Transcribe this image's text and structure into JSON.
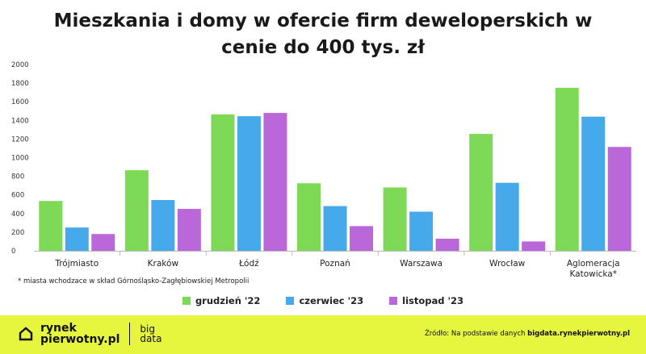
{
  "chart_data": {
    "type": "bar",
    "title_lines": [
      "Mieszkania i domy w ofercie firm deweloperskich w",
      "cenie do 400 tys. zł"
    ],
    "categories": [
      [
        "Trójmiasto"
      ],
      [
        "Kraków"
      ],
      [
        "Łódź"
      ],
      [
        "Poznań"
      ],
      [
        "Warszawa"
      ],
      [
        "Wrocław"
      ],
      [
        "Aglomeracja",
        "Katowicka*"
      ]
    ],
    "series": [
      {
        "name": "grudzień '22",
        "color": "#7ed957",
        "values": [
          535,
          865,
          1465,
          725,
          680,
          1255,
          1750
        ]
      },
      {
        "name": "czerwiec '23",
        "color": "#45a9ea",
        "values": [
          250,
          545,
          1445,
          480,
          420,
          730,
          1440
        ]
      },
      {
        "name": "listopad '23",
        "color": "#b967d9",
        "values": [
          180,
          450,
          1480,
          265,
          130,
          100,
          1115
        ]
      }
    ],
    "ylim": [
      0,
      2000
    ],
    "yticks": [
      "0",
      "200",
      "400",
      "600",
      "800",
      "1000",
      "1200",
      "1400",
      "1600",
      "1800",
      "2000"
    ],
    "grid": false,
    "legend_position": "bottom"
  },
  "footnote": "* miasta wchodzace w skład Górnośląsko-Zagłębiowskiej Metropolii",
  "footer": {
    "brand_line1": "rynek",
    "brand_line2": "pierwotny.pl",
    "brand_sub1": "big",
    "brand_sub2": "data",
    "source_prefix": "Źródło: Na podstawie danych ",
    "source_link": "bigdata.rynekpierwotny.pl",
    "background_color": "#e6f53d"
  }
}
